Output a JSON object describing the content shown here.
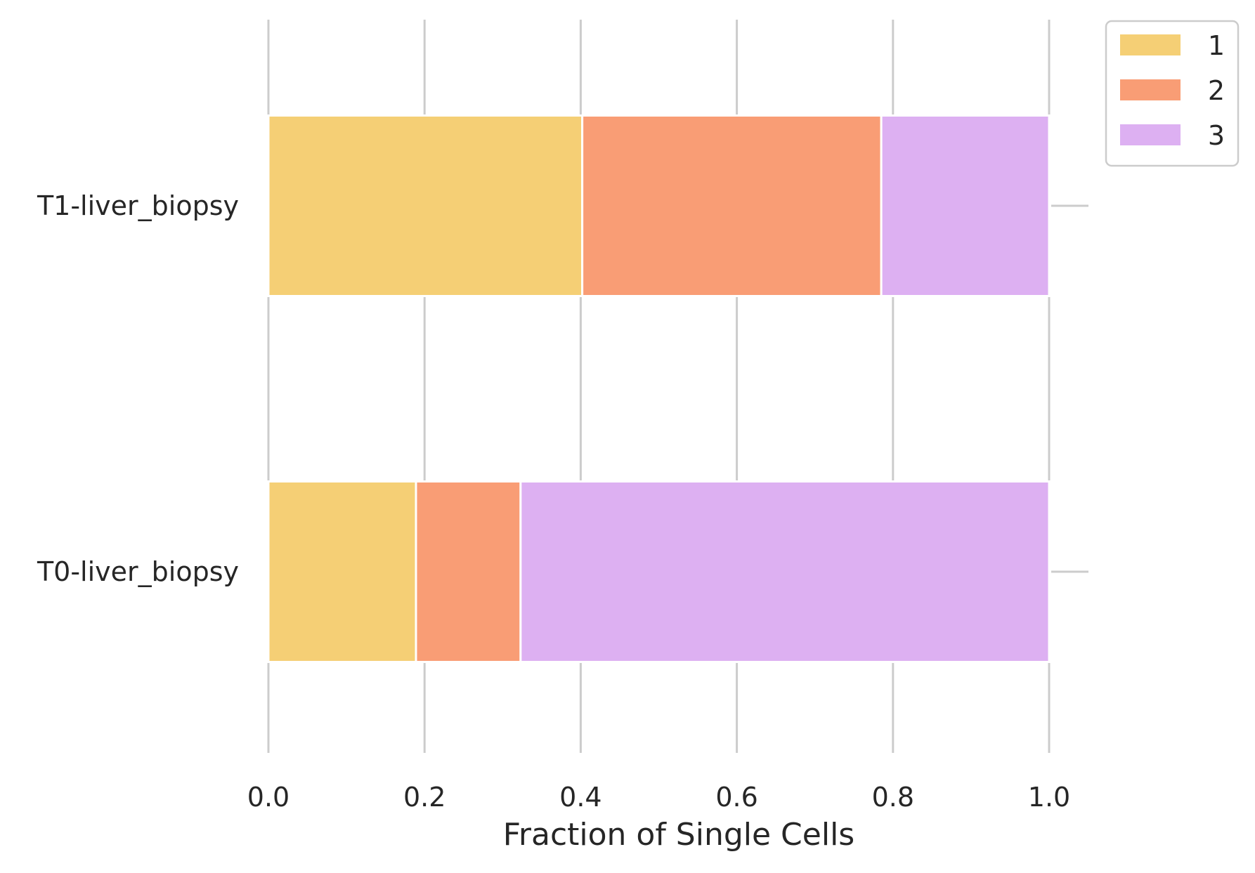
{
  "chart_data": {
    "type": "bar",
    "orientation": "horizontal",
    "stacked": true,
    "categories": [
      "T1-liver_biopsy",
      "T0-liver_biopsy"
    ],
    "series": [
      {
        "name": "1",
        "color": "#f5cf75",
        "values": [
          0.402,
          0.189
        ]
      },
      {
        "name": "2",
        "color": "#f99d75",
        "values": [
          0.383,
          0.134
        ]
      },
      {
        "name": "3",
        "color": "#ddb0f2",
        "values": [
          0.215,
          0.677
        ]
      }
    ],
    "xlabel": "Fraction of Single Cells",
    "ylabel": "",
    "xlim": [
      0,
      1.05
    ],
    "xticks": [
      "0.0",
      "0.2",
      "0.4",
      "0.6",
      "0.8",
      "1.0"
    ],
    "grid": "vertical",
    "legend_position": "outside-top-right"
  }
}
